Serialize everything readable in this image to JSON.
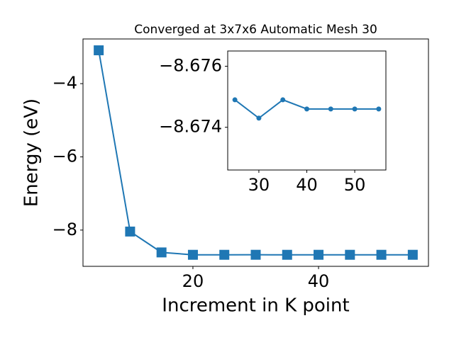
{
  "chart_data": [
    {
      "type": "line",
      "title": "Converged at 3x7x6 Automatic Mesh 30",
      "xlabel": "Increment in K point",
      "ylabel": "Energy (eV)",
      "x": [
        5,
        10,
        15,
        20,
        25,
        30,
        35,
        40,
        45,
        50,
        55
      ],
      "series": [
        {
          "color": "#1f77b4",
          "marker": "square",
          "values": [
            -3.09,
            -8.04,
            -8.61,
            -8.675,
            -8.6749,
            -8.6743,
            -8.6749,
            -8.6746,
            -8.6746,
            -8.6746,
            -8.6746
          ]
        }
      ],
      "xlim": [
        2.5,
        57.5
      ],
      "xticks": [
        20,
        40
      ],
      "ylim": [
        -8.99,
        -2.78
      ],
      "yticks": [
        {
          "value": -8,
          "label": "−8"
        },
        {
          "value": -6,
          "label": "−6"
        },
        {
          "value": -4,
          "label": "−4"
        }
      ]
    },
    {
      "type": "line",
      "x": [
        25,
        30,
        35,
        40,
        45,
        50,
        55
      ],
      "series": [
        {
          "color": "#1f77b4",
          "marker": "circle",
          "values": [
            -8.6749,
            -8.6743,
            -8.6749,
            -8.6746,
            -8.6746,
            -8.6746,
            -8.6746
          ]
        }
      ],
      "xlim": [
        23.5,
        56.5
      ],
      "xticks": [
        30,
        40,
        50
      ],
      "ylim": [
        -8.6726,
        -8.6765
      ],
      "yticks": [
        {
          "value": -8.674,
          "label": "−8.674"
        },
        {
          "value": -8.676,
          "label": "−8.676"
        }
      ]
    }
  ]
}
